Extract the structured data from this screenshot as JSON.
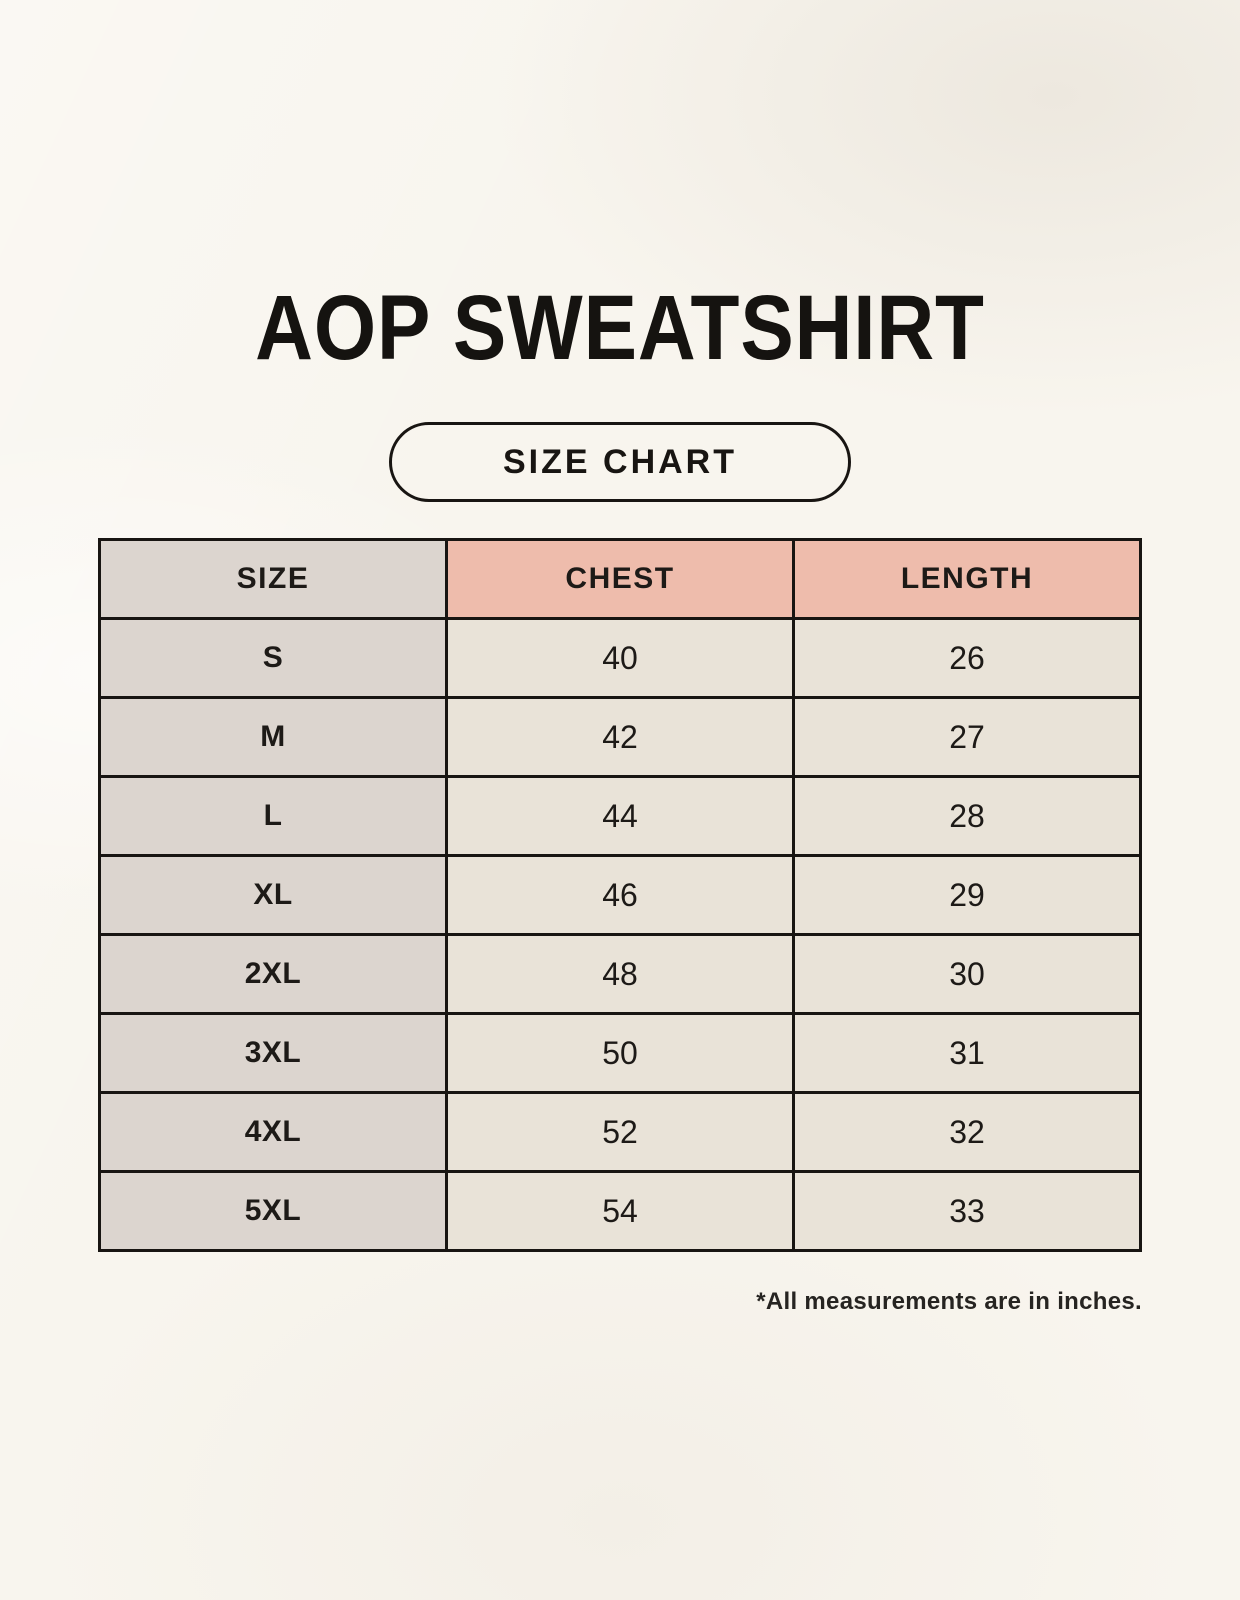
{
  "header": {
    "title": "AOP SWEATSHIRT",
    "badge_label": "SIZE CHART"
  },
  "footer": {
    "note": "*All measurements are in inches."
  },
  "colors": {
    "page_background": "#f8f5ee",
    "size_column_bg": "#dcd5cf",
    "header_accent_bg": "#eebcac",
    "value_cell_bg": "#e9e3d8",
    "border": "#181512",
    "text": "#1d1a17"
  },
  "chart_data": {
    "type": "table",
    "title": "AOP SWEATSHIRT",
    "subtitle": "SIZE CHART",
    "columns": [
      "SIZE",
      "CHEST",
      "LENGTH"
    ],
    "units": "inches",
    "note": "*All measurements are in inches.",
    "rows": [
      {
        "size": "S",
        "chest": 40,
        "length": 26
      },
      {
        "size": "M",
        "chest": 42,
        "length": 27
      },
      {
        "size": "L",
        "chest": 44,
        "length": 28
      },
      {
        "size": "XL",
        "chest": 46,
        "length": 29
      },
      {
        "size": "2XL",
        "chest": 48,
        "length": 30
      },
      {
        "size": "3XL",
        "chest": 50,
        "length": 31
      },
      {
        "size": "4XL",
        "chest": 52,
        "length": 32
      },
      {
        "size": "5XL",
        "chest": 54,
        "length": 33
      }
    ]
  }
}
